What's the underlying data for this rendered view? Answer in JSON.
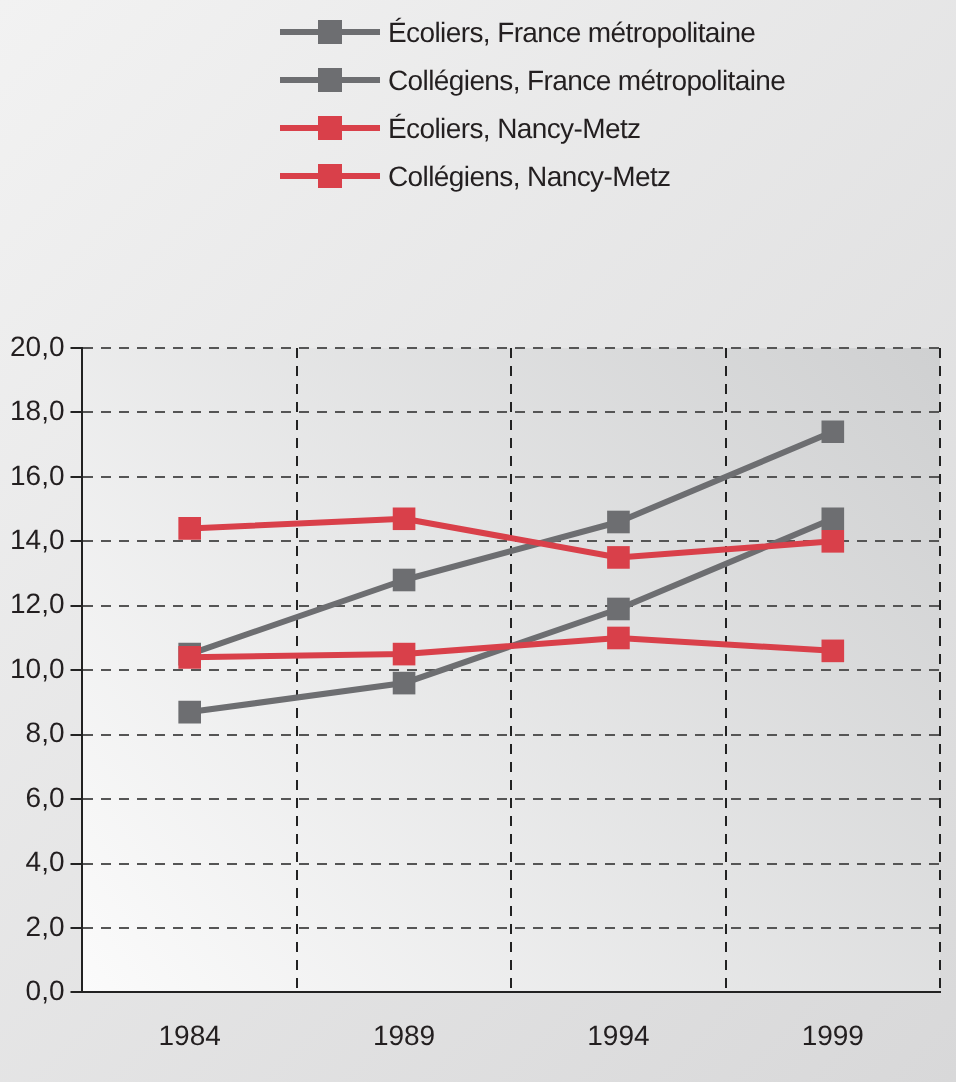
{
  "chart_data": {
    "type": "line",
    "categories": [
      "1984",
      "1989",
      "1994",
      "1999"
    ],
    "series": [
      {
        "name": "Écoliers, France métropolitaine",
        "color": "#6d6e71",
        "marker": "square",
        "values": [
          8.7,
          9.6,
          11.9,
          14.7
        ]
      },
      {
        "name": "Collégiens, France métropolitaine",
        "color": "#6d6e71",
        "marker": "square",
        "values": [
          10.5,
          12.8,
          14.6,
          17.4
        ]
      },
      {
        "name": "Écoliers, Nancy-Metz",
        "color": "#d9404a",
        "marker": "square",
        "values": [
          10.4,
          10.5,
          11.0,
          10.6
        ]
      },
      {
        "name": "Collégiens, Nancy-Metz",
        "color": "#d9404a",
        "marker": "square",
        "values": [
          14.4,
          14.7,
          13.5,
          14.0
        ]
      }
    ],
    "ylim": [
      0,
      20
    ],
    "yticks": [
      {
        "value": 0,
        "label": "0,0"
      },
      {
        "value": 2,
        "label": "2,0"
      },
      {
        "value": 4,
        "label": "4,0"
      },
      {
        "value": 6,
        "label": "6,0"
      },
      {
        "value": 8,
        "label": "8,0"
      },
      {
        "value": 10,
        "label": "10,0"
      },
      {
        "value": 12,
        "label": "12,0"
      },
      {
        "value": 14,
        "label": "14,0"
      },
      {
        "value": 16,
        "label": "16,0"
      },
      {
        "value": 18,
        "label": "18,0"
      },
      {
        "value": 20,
        "label": "20,0"
      }
    ],
    "grid": true,
    "legend": "top",
    "line_style": "solid"
  }
}
